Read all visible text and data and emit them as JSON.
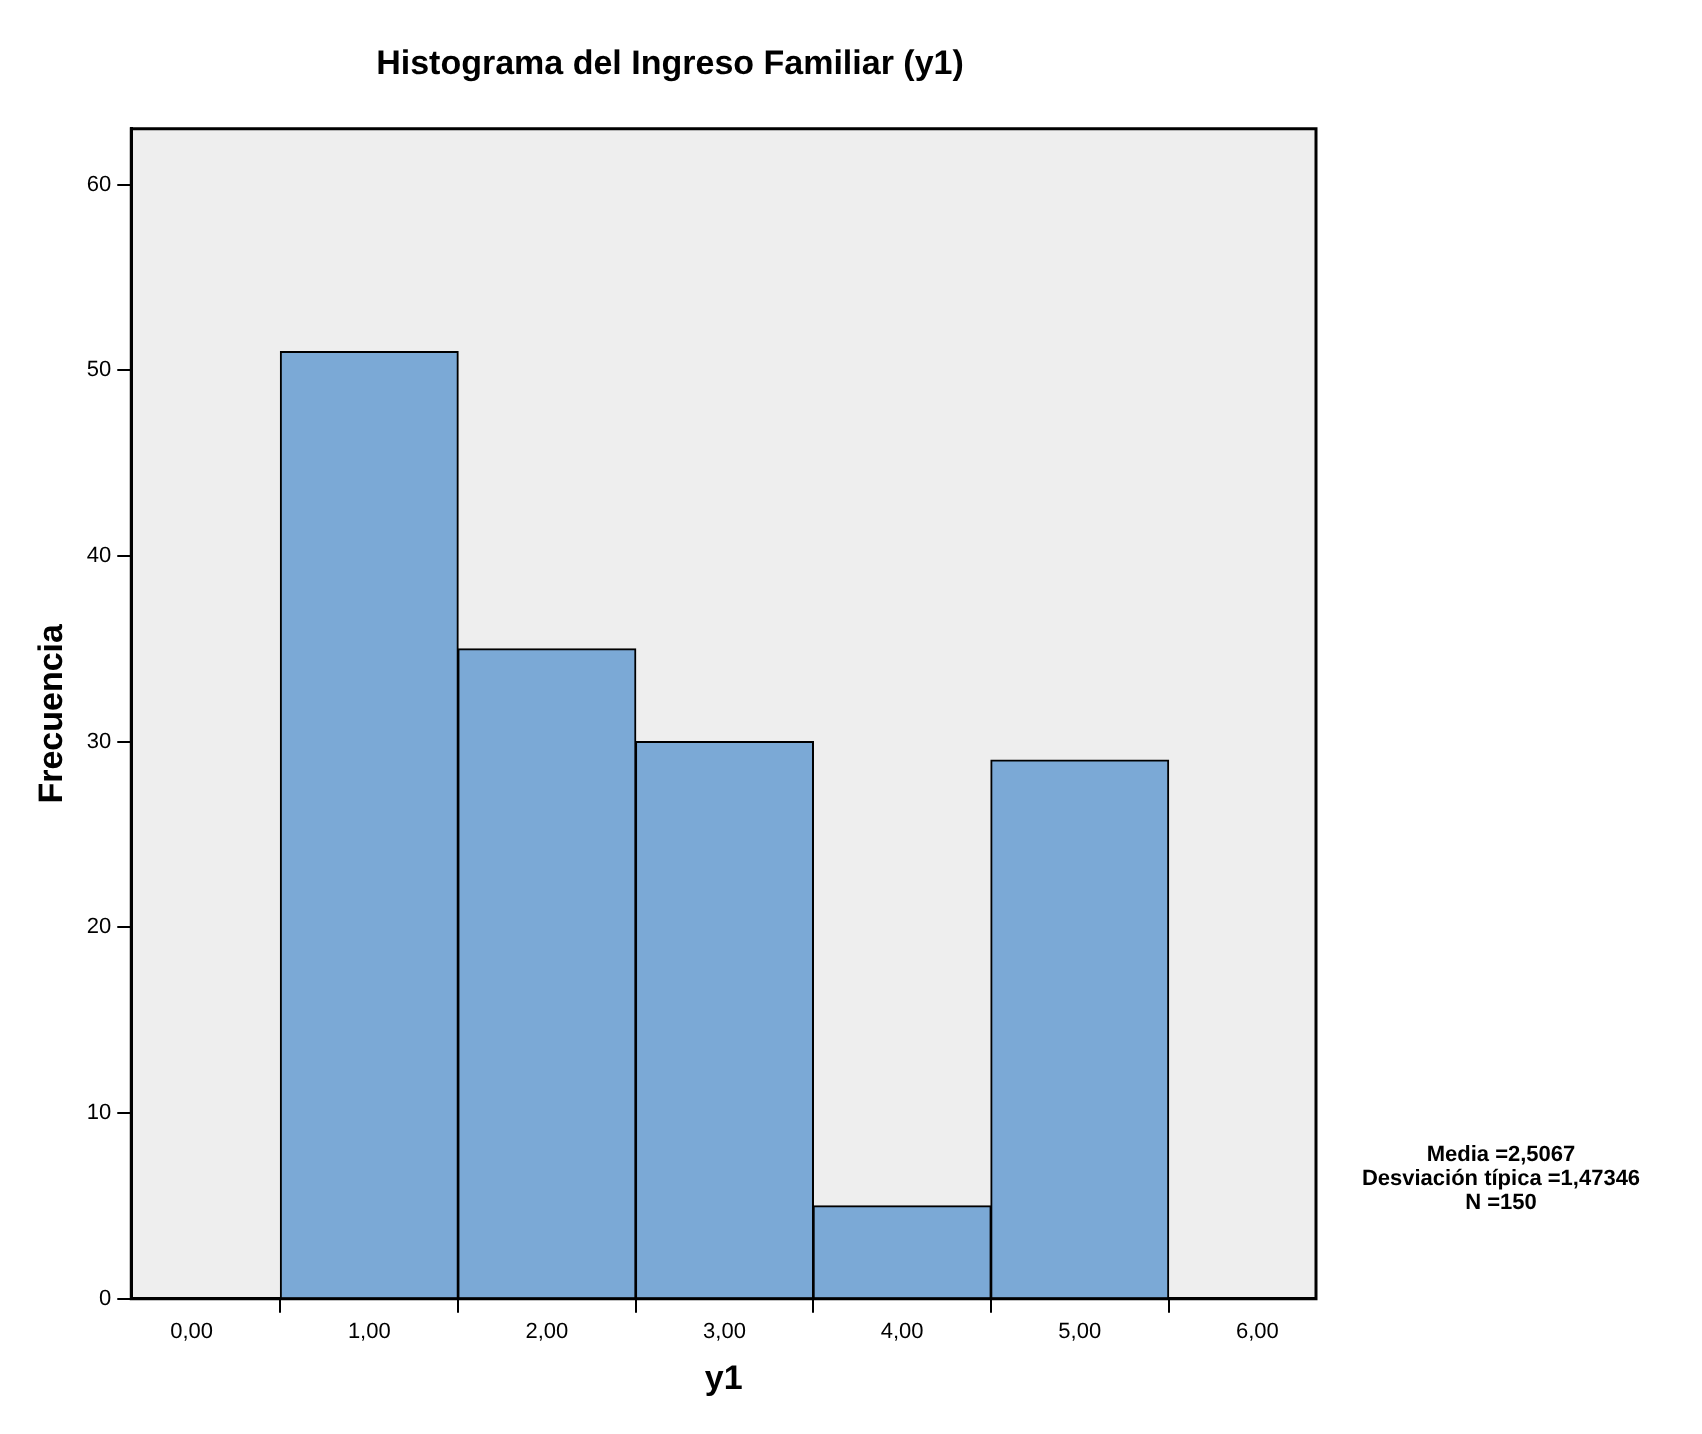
{
  "chart_data": {
    "type": "histogram",
    "title": "Histograma del Ingreso Familiar (y1)",
    "xlabel": "y1",
    "ylabel": "Frecuencia",
    "bins": [
      0.5,
      1.5,
      2.5,
      3.5,
      4.5,
      5.5
    ],
    "values": [
      51,
      35,
      30,
      5,
      29
    ],
    "color": "#7ba9d6",
    "xlim": [
      -0.34,
      6.33
    ],
    "xticks": [
      {
        "value": 0,
        "label": "0,00"
      },
      {
        "value": 1,
        "label": "1,00"
      },
      {
        "value": 2,
        "label": "2,00"
      },
      {
        "value": 3,
        "label": "3,00"
      },
      {
        "value": 4,
        "label": "4,00"
      },
      {
        "value": 5,
        "label": "5,00"
      },
      {
        "value": 6,
        "label": "6,00"
      }
    ],
    "ylim": [
      0,
      63
    ],
    "yticks": [
      0,
      10,
      20,
      30,
      40,
      50,
      60
    ],
    "grid": false,
    "legend": false,
    "annotations": [
      "Media =2,5067",
      "Desviación típica =1,47346",
      "N =150"
    ]
  }
}
